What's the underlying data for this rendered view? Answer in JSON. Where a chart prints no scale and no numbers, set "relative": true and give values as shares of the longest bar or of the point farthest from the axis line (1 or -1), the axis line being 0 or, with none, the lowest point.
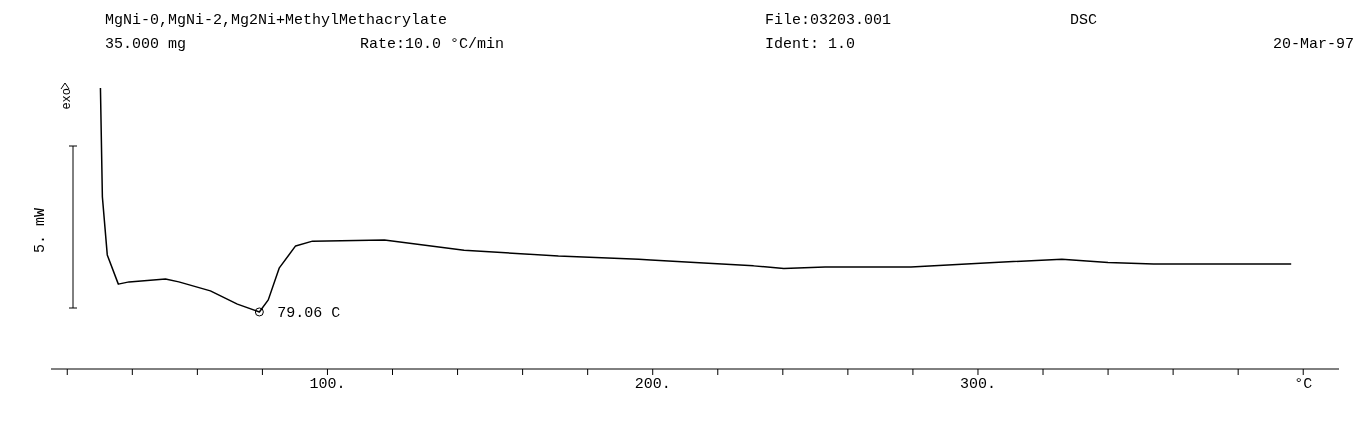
{
  "chart_data": {
    "type": "line",
    "title": "MgNi-0,MgNi-2,Mg2Ni+MethylMethacrylate",
    "ylabel": "5. mW",
    "relative": true,
    "annotations": [
      "File:03203.001",
      "DSC",
      "35.000 mg",
      "Rate:10.0 °C/min",
      "Ident: 1.0",
      "20-Mar-97",
      "exo",
      {
        "text": "79.06 C",
        "x": 79.06,
        "y": 0.203
      }
    ],
    "xlim": [
      15,
      411
    ],
    "xticks": [
      {
        "value": 20,
        "label": null
      },
      {
        "value": 40,
        "label": null
      },
      {
        "value": 60,
        "label": null
      },
      {
        "value": 80,
        "label": null
      },
      {
        "value": 100,
        "label": "100."
      },
      {
        "value": 120,
        "label": null
      },
      {
        "value": 140,
        "label": null
      },
      {
        "value": 160,
        "label": null
      },
      {
        "value": 180,
        "label": null
      },
      {
        "value": 200,
        "label": "200."
      },
      {
        "value": 220,
        "label": null
      },
      {
        "value": 240,
        "label": null
      },
      {
        "value": 260,
        "label": null
      },
      {
        "value": 280,
        "label": null
      },
      {
        "value": 300,
        "label": "300."
      },
      {
        "value": 320,
        "label": null
      },
      {
        "value": 340,
        "label": null
      },
      {
        "value": 360,
        "label": null
      },
      {
        "value": 380,
        "label": null
      },
      {
        "value": 400,
        "label": "°C"
      }
    ],
    "x": [
      30.2,
      30.8,
      32.3,
      35.7,
      39,
      50.2,
      54.3,
      64,
      72.3,
      79.06,
      81.8,
      85.2,
      90.2,
      95.4,
      117.5,
      142,
      171,
      195.7,
      199.4,
      215.7,
      231,
      240.3,
      253,
      279.4,
      305,
      325.8,
      340,
      354,
      396.3
    ],
    "series": [
      {
        "color": "#000000",
        "values": [
          1.0,
          0.612,
          0.406,
          0.302,
          0.31,
          0.32,
          0.31,
          0.278,
          0.231,
          0.203,
          0.246,
          0.36,
          0.438,
          0.455,
          0.459,
          0.423,
          0.402,
          0.391,
          0.388,
          0.377,
          0.367,
          0.358,
          0.363,
          0.363,
          0.379,
          0.391,
          0.379,
          0.374,
          0.374
        ]
      }
    ]
  }
}
